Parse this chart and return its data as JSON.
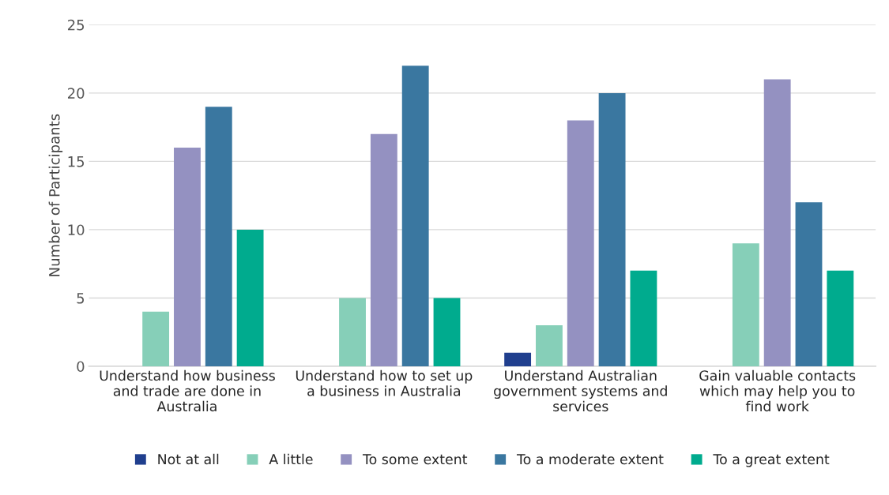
{
  "chart_data": {
    "type": "bar",
    "ylabel": "Number of Participants",
    "categories": [
      "Understand how business\nand trade are done in\nAustralia",
      "Understand how to set up\na business in Australia",
      "Understand Australian\ngovernment systems and\nservices",
      "Gain valuable contacts\nwhich may help you to\nfind work"
    ],
    "series": [
      {
        "name": "Not at all",
        "color": "#203f8e",
        "values": [
          0,
          0,
          1,
          0
        ]
      },
      {
        "name": "A little",
        "color": "#86cfb8",
        "values": [
          4,
          5,
          3,
          9
        ]
      },
      {
        "name": "To some extent",
        "color": "#9491c1",
        "values": [
          16,
          17,
          18,
          21
        ]
      },
      {
        "name": "To a moderate extent",
        "color": "#3a77a0",
        "values": [
          19,
          22,
          20,
          12
        ]
      },
      {
        "name": "To a great extent",
        "color": "#00ab8e",
        "values": [
          10,
          5,
          7,
          7
        ]
      }
    ],
    "ylim": [
      0,
      25
    ],
    "yticks": [
      0,
      5,
      10,
      15,
      20,
      25
    ],
    "grid": "y",
    "legend": "bottom"
  }
}
